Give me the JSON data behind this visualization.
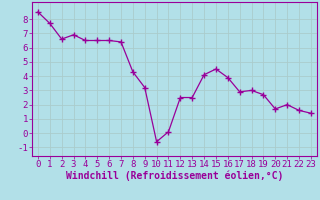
{
  "x": [
    0,
    1,
    2,
    3,
    4,
    5,
    6,
    7,
    8,
    9,
    10,
    11,
    12,
    13,
    14,
    15,
    16,
    17,
    18,
    19,
    20,
    21,
    22,
    23
  ],
  "y": [
    8.5,
    7.7,
    6.6,
    6.9,
    6.5,
    6.5,
    6.5,
    6.4,
    4.3,
    3.2,
    -0.6,
    0.1,
    2.5,
    2.5,
    4.1,
    4.5,
    3.9,
    2.9,
    3.0,
    2.7,
    1.7,
    2.0,
    1.6,
    1.4
  ],
  "line_color": "#990099",
  "marker_color": "#990099",
  "bg_color": "#b2e0e8",
  "grid_color": "#aacccc",
  "xlabel": "Windchill (Refroidissement éolien,°C)",
  "ylim": [
    -1.6,
    9.2
  ],
  "xlim": [
    -0.5,
    23.5
  ],
  "yticks": [
    -1,
    0,
    1,
    2,
    3,
    4,
    5,
    6,
    7,
    8
  ],
  "xticks": [
    0,
    1,
    2,
    3,
    4,
    5,
    6,
    7,
    8,
    9,
    10,
    11,
    12,
    13,
    14,
    15,
    16,
    17,
    18,
    19,
    20,
    21,
    22,
    23
  ],
  "font_color": "#990099",
  "font_size": 6.5,
  "xlabel_font_size": 7.0
}
